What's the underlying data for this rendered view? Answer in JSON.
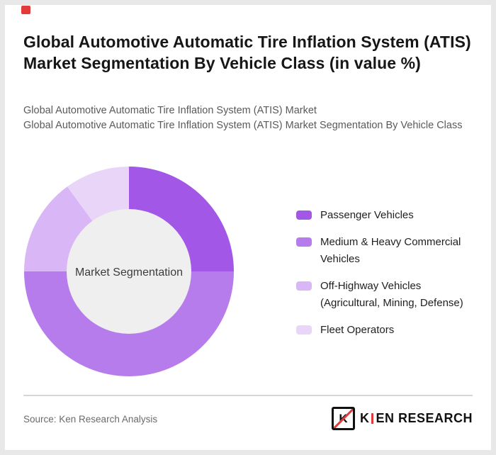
{
  "page": {
    "title": "Global Automotive Automatic Tire Inflation System (ATIS) Market Segmentation By Vehicle Class (in value %)",
    "subtitle1": "Global Automotive Automatic Tire Inflation System (ATIS) Market",
    "subtitle2": "Global Automotive Automatic Tire Inflation System (ATIS) Market Segmentation By Vehicle Class"
  },
  "chart_data": {
    "type": "pie",
    "variant": "donut",
    "title": "Global Automotive Automatic Tire Inflation System (ATIS) Market Segmentation By Vehicle Class (in value %)",
    "center_label": "Market Segmentation",
    "categories": [
      "Passenger Vehicles",
      "Medium & Heavy Commercial Vehicles",
      "Off-Highway Vehicles (Agricultural, Mining, Defense)",
      "Fleet Operators"
    ],
    "values": [
      25,
      50,
      15,
      10
    ],
    "colors": [
      "#a257e6",
      "#b77ceb",
      "#d9b6f5",
      "#e9d5f8"
    ],
    "center_fill": "#efefef",
    "legend_position": "right",
    "start_angle_deg": 0,
    "direction": "clockwise"
  },
  "footer": {
    "source": "Source: Ken Research Analysis",
    "logo": {
      "icon_letter": "K",
      "wordmark_first": "K",
      "wordmark_rest": "EN RESEARCH"
    }
  },
  "brand": {
    "red": "#e23b3b",
    "black": "#101010"
  }
}
